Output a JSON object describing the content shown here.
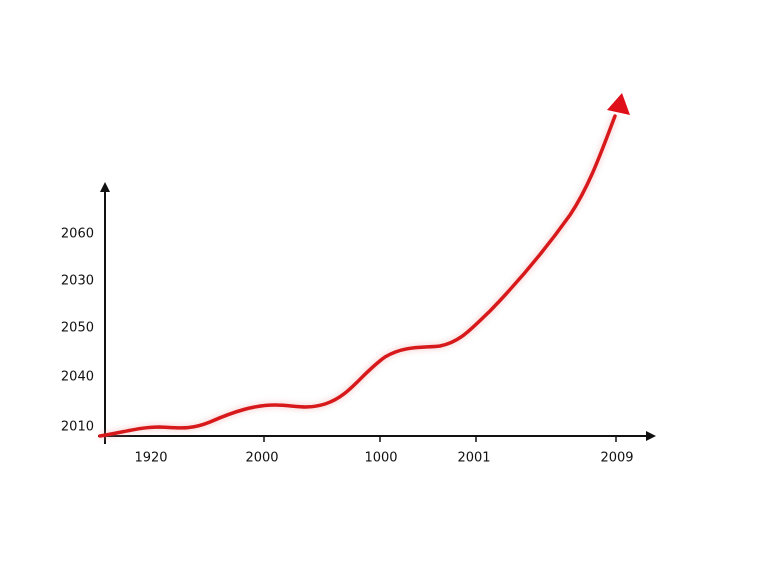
{
  "y_axis_labels": [
    "2060",
    "2030",
    "2050",
    "2040",
    "2010"
  ],
  "x_axis_labels": [
    "1920",
    "2000",
    "1000",
    "2001",
    "2009"
  ]
}
